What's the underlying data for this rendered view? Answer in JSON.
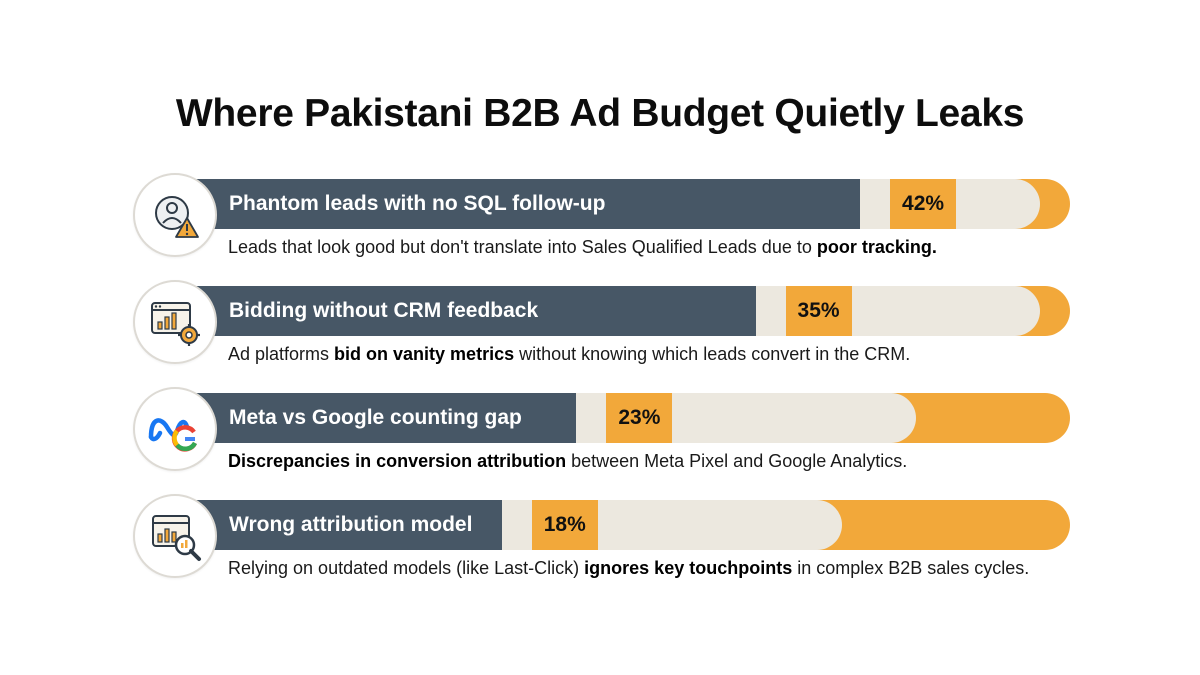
{
  "title": "Where Pakistani B2B Ad Budget Quietly Leaks",
  "chart_data": {
    "type": "bar",
    "title": "Where Pakistani B2B Ad Budget Quietly Leaks",
    "categories": [
      "Phantom leads with no SQL follow-up",
      "Bidding without CRM feedback",
      "Meta vs Google counting gap",
      "Wrong attribution model"
    ],
    "values": [
      42,
      35,
      23,
      18
    ],
    "value_labels": [
      "42%",
      "35%",
      "23%",
      "18%"
    ],
    "xlim": [
      0,
      100
    ]
  },
  "rows": [
    {
      "icon": "user-warning-icon",
      "label": "Phantom leads with no SQL follow-up",
      "value": 42,
      "value_label": "42%",
      "desc_pre": "Leads that look good but don't translate into Sales Qualified Leads due to ",
      "desc_bold": "poor tracking.",
      "desc_post": ""
    },
    {
      "icon": "dashboard-gear-icon",
      "label": "Bidding without CRM feedback",
      "value": 35,
      "value_label": "35%",
      "desc_pre": "Ad platforms ",
      "desc_bold": "bid on vanity metrics",
      "desc_post": " without knowing which leads convert in the CRM."
    },
    {
      "icon": "meta-google-icon",
      "label": "Meta vs Google counting gap",
      "value": 23,
      "value_label": "23%",
      "desc_pre": "",
      "desc_bold": "Discrepancies in conversion attribution",
      "desc_post": " between Meta Pixel and Google Analytics."
    },
    {
      "icon": "chart-magnifier-icon",
      "label": "Wrong attribution model",
      "value": 18,
      "value_label": "18%",
      "desc_pre": "Relying on outdated models (like Last-Click) ",
      "desc_bold": "ignores key touchpoints",
      "desc_post": " in complex B2B sales cycles."
    }
  ],
  "colors": {
    "dark_bar": "#475766",
    "accent": "#f2a83a",
    "cream": "#ece8df"
  }
}
